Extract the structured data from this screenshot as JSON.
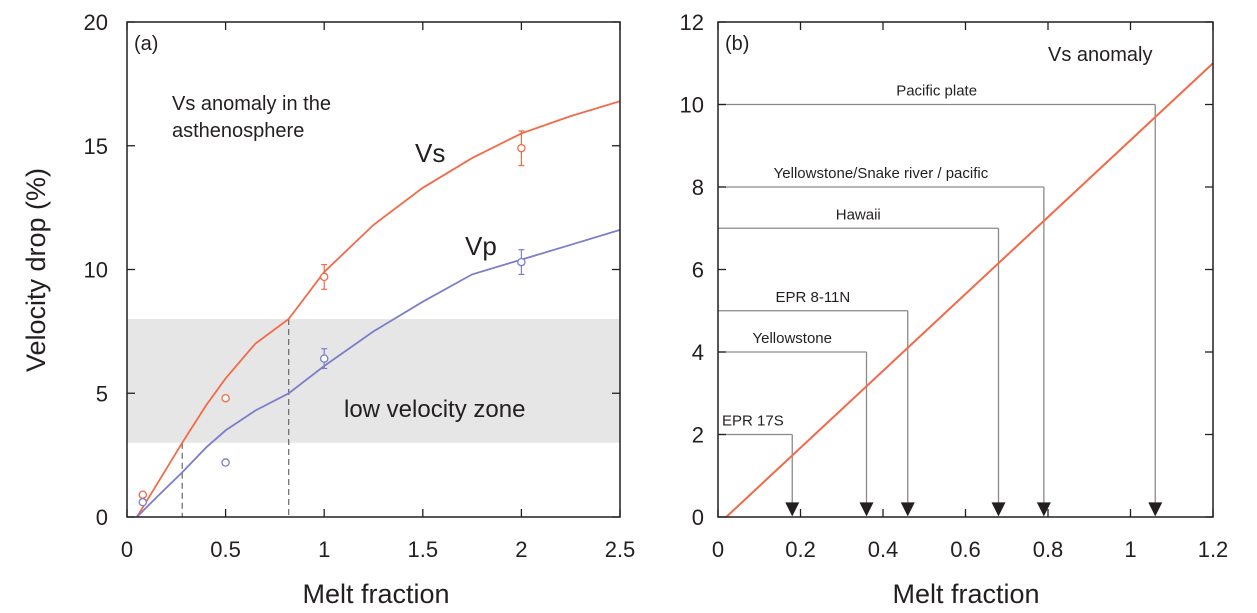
{
  "chart_data": [
    {
      "type": "line",
      "panel_label": "(a)",
      "xlabel": "Melt fraction",
      "ylabel": "Velocity drop (%)",
      "xlim": [
        0,
        2.5
      ],
      "ylim": [
        0,
        20
      ],
      "xticks": [
        "0",
        "0.5",
        "1",
        "1.5",
        "2",
        "2.5"
      ],
      "yticks": [
        "0",
        "5",
        "10",
        "15",
        "20"
      ],
      "annotation": "Vs anomaly in the\nasthenosphere",
      "band": {
        "label": "low velocity zone",
        "y": [
          3,
          8
        ],
        "color": "#e6e6e6"
      },
      "guides_x": [
        0.28,
        0.82
      ],
      "series": [
        {
          "name": "Vs",
          "color": "#f26a47",
          "curve": {
            "x": [
              0.05,
              0.15,
              0.28,
              0.4,
              0.5,
              0.65,
              0.82,
              1.0,
              1.25,
              1.5,
              1.75,
              2.0,
              2.25,
              2.5
            ],
            "y": [
              0.0,
              1.3,
              3.0,
              4.5,
              5.6,
              7.0,
              8.0,
              9.9,
              11.8,
              13.3,
              14.5,
              15.5,
              16.2,
              16.8
            ]
          },
          "points": [
            {
              "x": 0.08,
              "y": 0.9,
              "err": 0
            },
            {
              "x": 0.5,
              "y": 4.8,
              "err": 0
            },
            {
              "x": 1.0,
              "y": 9.7,
              "err": 0.5
            },
            {
              "x": 2.0,
              "y": 14.9,
              "err": 0.7
            }
          ]
        },
        {
          "name": "Vp",
          "color": "#7b7fc9",
          "curve": {
            "x": [
              0.05,
              0.15,
              0.28,
              0.4,
              0.5,
              0.65,
              0.82,
              1.0,
              1.25,
              1.5,
              1.75,
              2.0,
              2.25,
              2.5
            ],
            "y": [
              0.0,
              0.8,
              1.8,
              2.8,
              3.5,
              4.3,
              5.0,
              6.1,
              7.5,
              8.7,
              9.8,
              10.4,
              11.0,
              11.6
            ]
          },
          "points": [
            {
              "x": 0.08,
              "y": 0.6,
              "err": 0
            },
            {
              "x": 0.5,
              "y": 2.2,
              "err": 0
            },
            {
              "x": 1.0,
              "y": 6.4,
              "err": 0.4
            },
            {
              "x": 2.0,
              "y": 10.3,
              "err": 0.5
            }
          ]
        }
      ]
    },
    {
      "type": "line",
      "panel_label": "(b)",
      "xlabel": "Melt fraction",
      "ylabel": "",
      "xlim": [
        0,
        1.2
      ],
      "ylim": [
        0,
        12
      ],
      "xticks": [
        "0",
        "0.2",
        "0.4",
        "0.6",
        "0.8",
        "1",
        "1.2"
      ],
      "yticks": [
        "0",
        "2",
        "4",
        "6",
        "8",
        "10",
        "12"
      ],
      "annotation": "Vs anomaly",
      "series": [
        {
          "name": "",
          "color": "#f26a47",
          "x": [
            0.02,
            1.2
          ],
          "y": [
            0.0,
            11.0
          ]
        }
      ],
      "references": [
        {
          "label": "EPR 17S",
          "y": 2,
          "x": 0.18
        },
        {
          "label": "Yellowstone",
          "y": 4,
          "x": 0.36
        },
        {
          "label": "EPR 8-11N",
          "y": 5,
          "x": 0.46
        },
        {
          "label": "Hawaii",
          "y": 7,
          "x": 0.68
        },
        {
          "label": "Yellowstone/Snake river / pacific",
          "y": 8,
          "x": 0.79
        },
        {
          "label": "Pacific plate",
          "y": 10,
          "x": 1.06
        }
      ]
    }
  ]
}
